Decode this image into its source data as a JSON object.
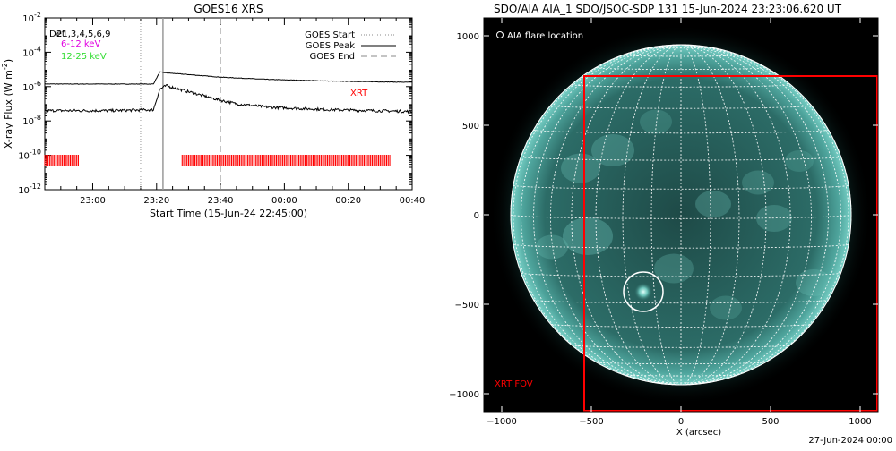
{
  "chart_data": [
    {
      "type": "line",
      "title": "GOES16 XRS",
      "xlabel": "Start Time (15-Jun-24 22:45:00)",
      "ylabel": "X-ray Flux (W m",
      "ylabel_sup": "-2",
      "ylabel_close": ")",
      "y_scale": "log",
      "ylim_exp": [
        -12,
        -2
      ],
      "y_ticks_exp": [
        -12,
        -10,
        -8,
        -6,
        -4,
        -2
      ],
      "x_range_min": [
        0,
        115
      ],
      "x_ticks": [
        {
          "min": 15,
          "label": "23:00"
        },
        {
          "min": 35,
          "label": "23:20"
        },
        {
          "min": 55,
          "label": "23:40"
        },
        {
          "min": 75,
          "label": "00:00"
        },
        {
          "min": 95,
          "label": "00:20"
        },
        {
          "min": 115,
          "label": "00:40"
        }
      ],
      "legend_top_left": [
        {
          "text": "Det",
          "color": "#000000"
        },
        {
          "text": "21,3,4,5,6,9",
          "color": "#000000"
        },
        {
          "text": "6-12 keV",
          "color": "#e000e0"
        },
        {
          "text": "12-25 keV",
          "color": "#33dd33"
        }
      ],
      "legend_top_right": [
        {
          "text": "GOES Start",
          "style": "dotted"
        },
        {
          "text": "GOES Peak",
          "style": "solid"
        },
        {
          "text": "GOES End",
          "style": "dashed"
        }
      ],
      "markers": {
        "start_min": 30,
        "peak_min": 37,
        "end_min": 55
      },
      "series": [
        {
          "color": "#000000",
          "points": [
            [
              0,
              -5.85
            ],
            [
              20,
              -5.85
            ],
            [
              34,
              -5.85
            ],
            [
              36,
              -5.15
            ],
            [
              38,
              -5.2
            ],
            [
              45,
              -5.3
            ],
            [
              55,
              -5.45
            ],
            [
              70,
              -5.58
            ],
            [
              90,
              -5.68
            ],
            [
              115,
              -5.75
            ]
          ],
          "noise": 0.015
        },
        {
          "color": "#000000",
          "points": [
            [
              0,
              -7.4
            ],
            [
              20,
              -7.4
            ],
            [
              34,
              -7.35
            ],
            [
              36,
              -6.15
            ],
            [
              38,
              -5.95
            ],
            [
              45,
              -6.3
            ],
            [
              50,
              -6.55
            ],
            [
              55,
              -6.8
            ],
            [
              60,
              -7.0
            ],
            [
              70,
              -7.2
            ],
            [
              90,
              -7.35
            ],
            [
              115,
              -7.45
            ]
          ],
          "noise": 0.08
        }
      ],
      "xrt_label": "XRT",
      "xrt_color": "#ff0000",
      "xrt_intervals_min": [
        [
          0,
          10.5
        ],
        [
          43,
          108
        ]
      ]
    },
    {
      "type": "heatmap",
      "title": "SDO/AIA AIA_1 SDO/JSOC-SDP 131 15-Jun-2024 23:23:06.620 UT",
      "xlabel": "X (arcsec)",
      "xlim": [
        -1100,
        1100
      ],
      "ylim": [
        -1100,
        1100
      ],
      "x_ticks": [
        -1000,
        -500,
        0,
        500,
        1000
      ],
      "y_ticks": [
        -1000,
        -500,
        0,
        500,
        1000
      ],
      "solar_radius_arcsec": 950,
      "grid_spacing_deg": 10,
      "legend_text": "AIA flare location",
      "flare_location": {
        "x": -210,
        "y": -430,
        "r": 55
      },
      "xrt_fov": {
        "x0": -540,
        "x1": 1100,
        "y0": -1100,
        "y1": 775
      },
      "xrt_fov_label": "XRT FOV",
      "xrt_color": "#ff0000"
    }
  ],
  "footer": {
    "date": "27-Jun-2024 00:00"
  }
}
